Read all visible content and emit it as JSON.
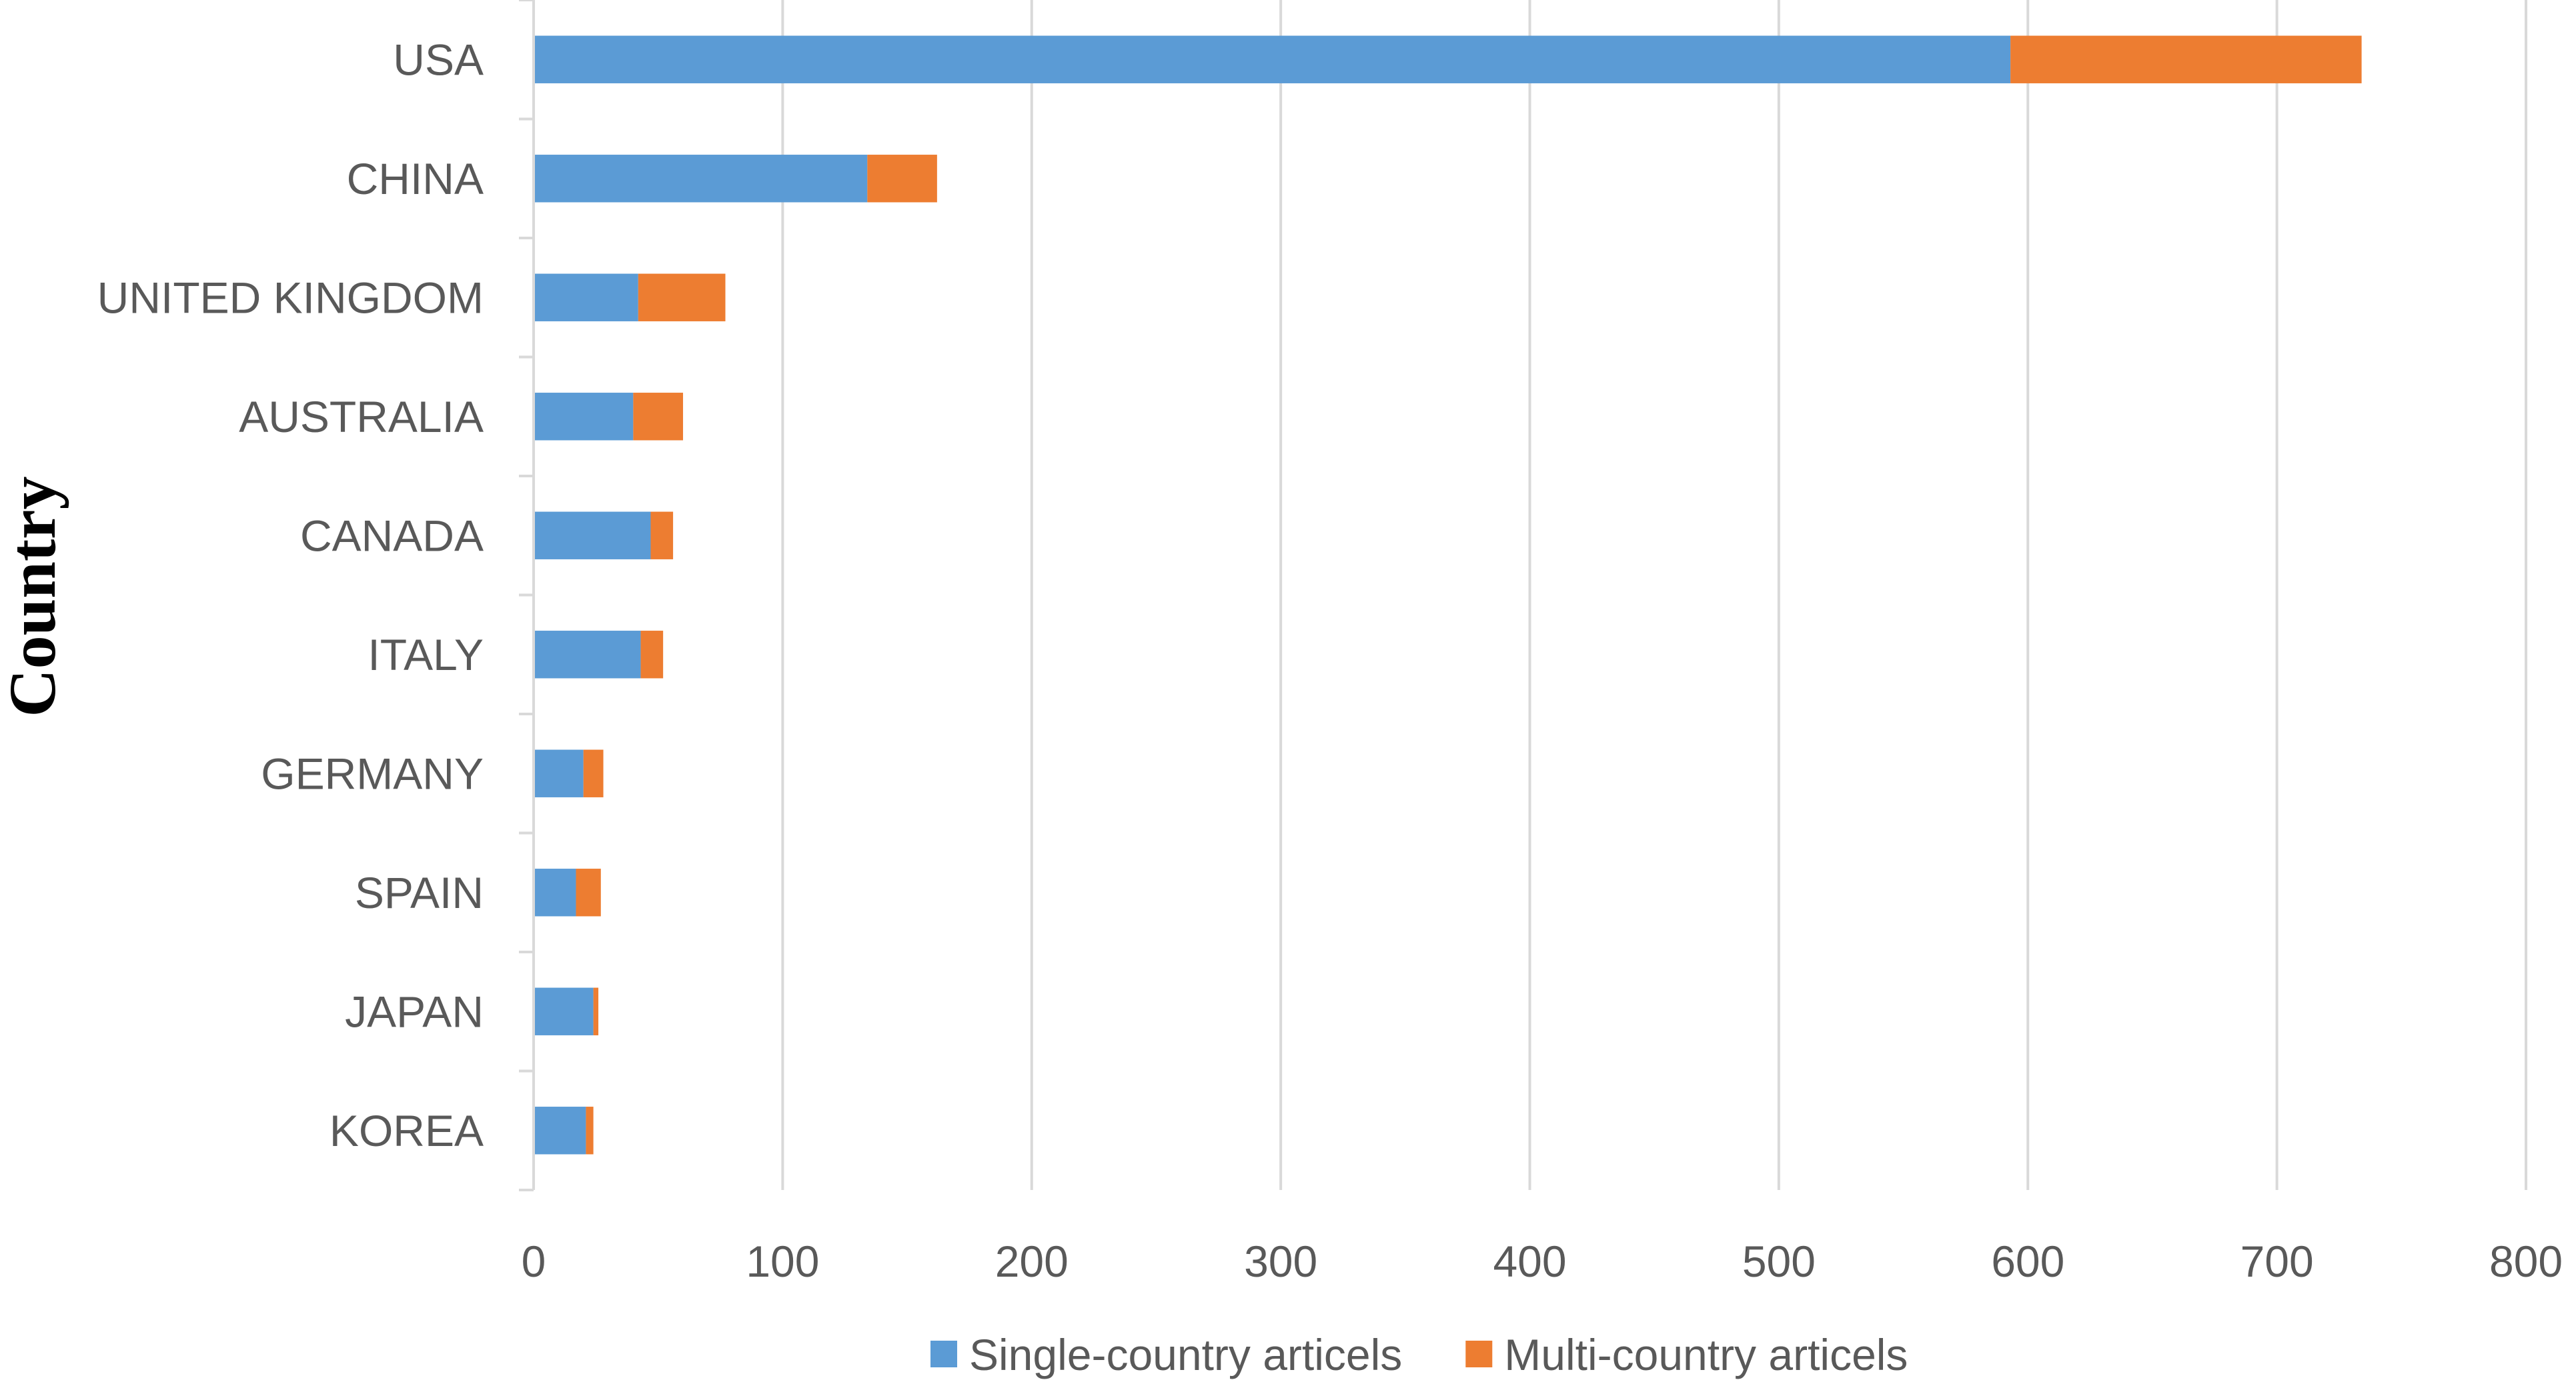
{
  "chart_data": {
    "type": "bar",
    "orientation": "horizontal",
    "stacked": true,
    "title": "",
    "xlabel": "",
    "ylabel": "Country",
    "categories": [
      "USA",
      "CHINA",
      "UNITED KINGDOM",
      "AUSTRALIA",
      "CANADA",
      "ITALY",
      "GERMANY",
      "SPAIN",
      "JAPAN",
      "KOREA"
    ],
    "series": [
      {
        "name": "Single-country articels",
        "color": "#5B9BD5",
        "values": [
          593,
          134,
          42,
          40,
          47,
          43,
          20,
          17,
          24,
          21
        ]
      },
      {
        "name": "Multi-country articels",
        "color": "#ED7D31",
        "values": [
          141,
          28,
          35,
          20,
          9,
          9,
          8,
          10,
          2,
          3
        ]
      }
    ],
    "xlim": [
      0,
      800
    ],
    "xticks": [
      0,
      100,
      200,
      300,
      400,
      500,
      600,
      700,
      800
    ],
    "grid": true,
    "legend_position": "bottom"
  }
}
